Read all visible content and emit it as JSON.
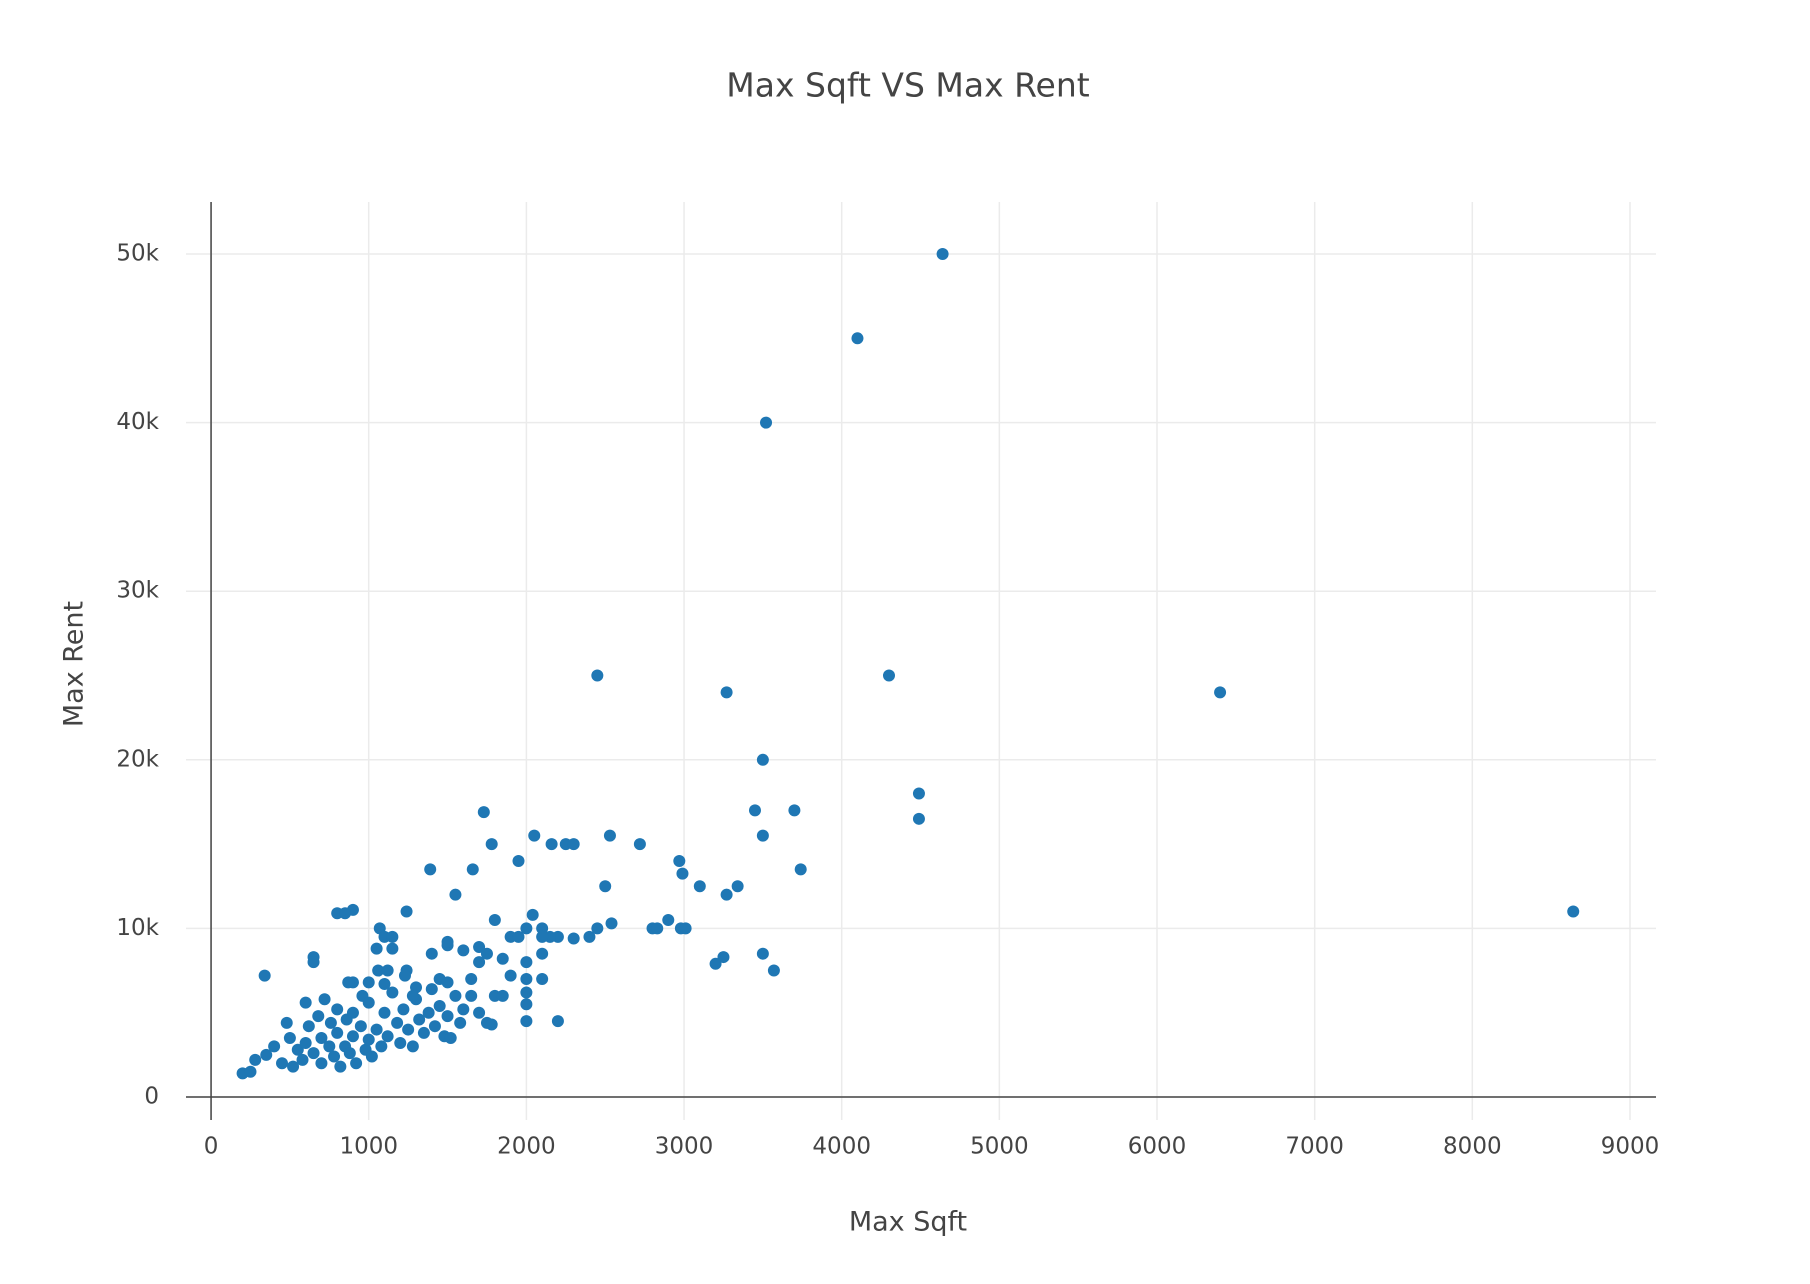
{
  "chart_data": {
    "type": "scatter",
    "title": "Max Sqft VS Max Rent",
    "x_label": "Max Sqft",
    "y_label": "Max Rent",
    "color": "#1f77b4",
    "grid": true,
    "xlim": [
      -159,
      9165
    ],
    "ylim": [
      -1364,
      53085
    ],
    "xticks": [
      0,
      1000,
      2000,
      3000,
      4000,
      5000,
      6000,
      7000,
      8000,
      9000
    ],
    "yticks": [
      0,
      {
        "value": 10000,
        "label": "10k"
      },
      {
        "value": 20000,
        "label": "20k"
      },
      {
        "value": 30000,
        "label": "30k"
      },
      {
        "value": 40000,
        "label": "40k"
      },
      {
        "value": 50000,
        "label": "50k"
      }
    ],
    "x": [
      4640,
      4100,
      3520,
      2450,
      4300,
      3270,
      6400,
      3500,
      4490,
      4490,
      8640,
      1730,
      3450,
      3700,
      2050,
      2530,
      3500,
      1780,
      2160,
      2250,
      2300,
      2720,
      1950,
      2970,
      1390,
      1660,
      2990,
      3740,
      1550,
      2500,
      3100,
      3340,
      3270,
      800,
      900,
      850,
      1240,
      1070,
      1800,
      2040,
      2900,
      2540,
      2800,
      2830,
      2980,
      3010,
      2450,
      2400,
      2300,
      2200,
      2150,
      2000,
      2100,
      2100,
      1900,
      1950,
      3250,
      3200,
      3500,
      3570,
      2200,
      2000,
      2000,
      2000,
      2000,
      2100,
      2000,
      2100,
      1700,
      1500,
      1600,
      1400,
      1750,
      1850,
      1900,
      1800,
      1850,
      340,
      650,
      650,
      1100,
      1150,
      1050,
      1150,
      1060,
      1120,
      1240,
      1230,
      1000,
      900,
      870,
      1300,
      1450,
      1500,
      200,
      250,
      280,
      350,
      400,
      450,
      480,
      500,
      520,
      550,
      580,
      600,
      600,
      620,
      650,
      680,
      700,
      700,
      720,
      750,
      760,
      780,
      800,
      800,
      820,
      850,
      860,
      880,
      900,
      900,
      920,
      950,
      960,
      980,
      1000,
      1000,
      1020,
      1050,
      1080,
      1100,
      1120,
      1150,
      1180,
      1200,
      1220,
      1250,
      1280,
      1300,
      1320,
      1350,
      1380,
      1400,
      1420,
      1450,
      1480,
      1500,
      1520,
      1550,
      1580,
      1600,
      1650,
      1700,
      1750,
      1780,
      1650,
      1700,
      1500,
      1280,
      1100
    ],
    "values": [
      50000,
      45000,
      40000,
      25000,
      25000,
      24000,
      24000,
      20000,
      18000,
      16500,
      11000,
      16900,
      17000,
      17000,
      15500,
      15500,
      15500,
      15000,
      15000,
      15000,
      15000,
      15000,
      14000,
      14000,
      13500,
      13500,
      13250,
      13500,
      12000,
      12500,
      12500,
      12500,
      12000,
      10900,
      11100,
      10900,
      11000,
      10000,
      10500,
      10800,
      10500,
      10300,
      10000,
      10000,
      10000,
      10000,
      10000,
      9500,
      9400,
      9500,
      9500,
      10000,
      10000,
      9500,
      9500,
      9500,
      8300,
      7900,
      8500,
      7500,
      4500,
      4500,
      5500,
      6200,
      7000,
      7000,
      8000,
      8500,
      8000,
      9000,
      8700,
      8500,
      8500,
      8200,
      7200,
      6000,
      6000,
      7200,
      8300,
      8000,
      9500,
      9500,
      8800,
      8800,
      7500,
      7500,
      7500,
      7200,
      6800,
      6800,
      6800,
      6500,
      7000,
      6800,
      1400,
      1500,
      2200,
      2500,
      3000,
      2000,
      4400,
      3500,
      1800,
      2800,
      2200,
      5600,
      3200,
      4200,
      2600,
      4800,
      3500,
      2000,
      5800,
      3000,
      4400,
      2400,
      3800,
      5200,
      1800,
      3000,
      4600,
      2600,
      3600,
      5000,
      2000,
      4200,
      6000,
      2800,
      3400,
      5600,
      2400,
      4000,
      3000,
      5000,
      3600,
      6200,
      4400,
      3200,
      5200,
      4000,
      3000,
      5800,
      4600,
      3800,
      5000,
      6400,
      4200,
      5400,
      3600,
      4800,
      3500,
      6000,
      4400,
      5200,
      6000,
      5000,
      4400,
      4300,
      7000,
      8900,
      9200,
      6000,
      6700
    ]
  }
}
